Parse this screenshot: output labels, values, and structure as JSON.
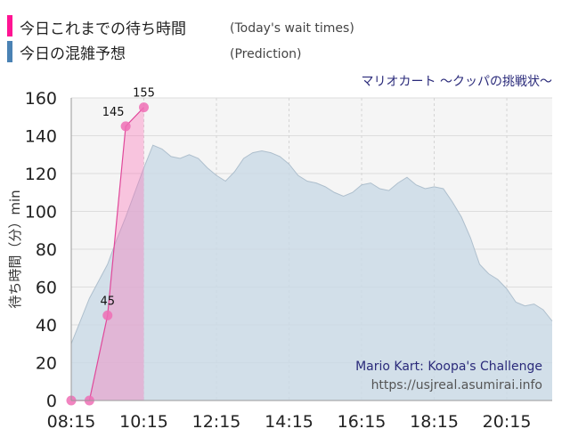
{
  "legend": {
    "actual_label": "今日これまでの待ち時間",
    "actual_note": "(Today's wait times)",
    "actual_color": "#ff1493",
    "prediction_label": "今日の混雑予想",
    "prediction_note": "(Prediction)",
    "prediction_color": "#4a82b4"
  },
  "attraction_jp": "マリオカート ～クッパの挑戦状～",
  "watermark": {
    "name_en": "Mario Kart: Koopa's Challenge",
    "url": "https://usjreal.asumirai.info"
  },
  "chart_data": {
    "type": "area",
    "ylabel": "待ち時間（分）min",
    "ylim": [
      0,
      160
    ],
    "xlim": [
      "08:15",
      "21:30"
    ],
    "y_ticks": [
      0,
      20,
      40,
      60,
      80,
      100,
      120,
      140,
      160
    ],
    "x_ticks": [
      "08:15",
      "10:15",
      "12:15",
      "14:15",
      "16:15",
      "18:15",
      "20:15"
    ],
    "grid": true,
    "series": [
      {
        "name": "今日これまでの待ち時間",
        "type": "line",
        "color": "#ff1493",
        "x": [
          "08:15",
          "08:45",
          "09:15",
          "09:45",
          "10:15"
        ],
        "values": [
          0,
          0,
          45,
          145,
          155
        ],
        "data_labels": [
          "",
          "",
          "45",
          "145",
          "155"
        ]
      },
      {
        "name": "今日の混雑予想",
        "type": "area",
        "color": "#4a82b4",
        "x": [
          "08:15",
          "08:30",
          "08:45",
          "09:00",
          "09:15",
          "09:30",
          "09:45",
          "10:00",
          "10:15",
          "10:30",
          "10:45",
          "11:00",
          "11:15",
          "11:30",
          "11:45",
          "12:00",
          "12:15",
          "12:30",
          "12:45",
          "13:00",
          "13:15",
          "13:30",
          "13:45",
          "14:00",
          "14:15",
          "14:30",
          "14:45",
          "15:00",
          "15:15",
          "15:30",
          "15:45",
          "16:00",
          "16:15",
          "16:30",
          "16:45",
          "17:00",
          "17:15",
          "17:30",
          "17:45",
          "18:00",
          "18:15",
          "18:30",
          "18:45",
          "19:00",
          "19:15",
          "19:30",
          "19:45",
          "20:00",
          "20:15",
          "20:30",
          "20:45",
          "21:00",
          "21:15",
          "21:30"
        ],
        "values": [
          30,
          42,
          54,
          63,
          72,
          85,
          97,
          110,
          123,
          135,
          133,
          129,
          128,
          130,
          128,
          123,
          119,
          116,
          121,
          128,
          131,
          132,
          131,
          129,
          125,
          119,
          116,
          115,
          113,
          110,
          108,
          110,
          114,
          115,
          112,
          111,
          115,
          118,
          114,
          112,
          113,
          112,
          105,
          97,
          86,
          72,
          67,
          64,
          59,
          52,
          50,
          51,
          48,
          42
        ]
      }
    ]
  }
}
